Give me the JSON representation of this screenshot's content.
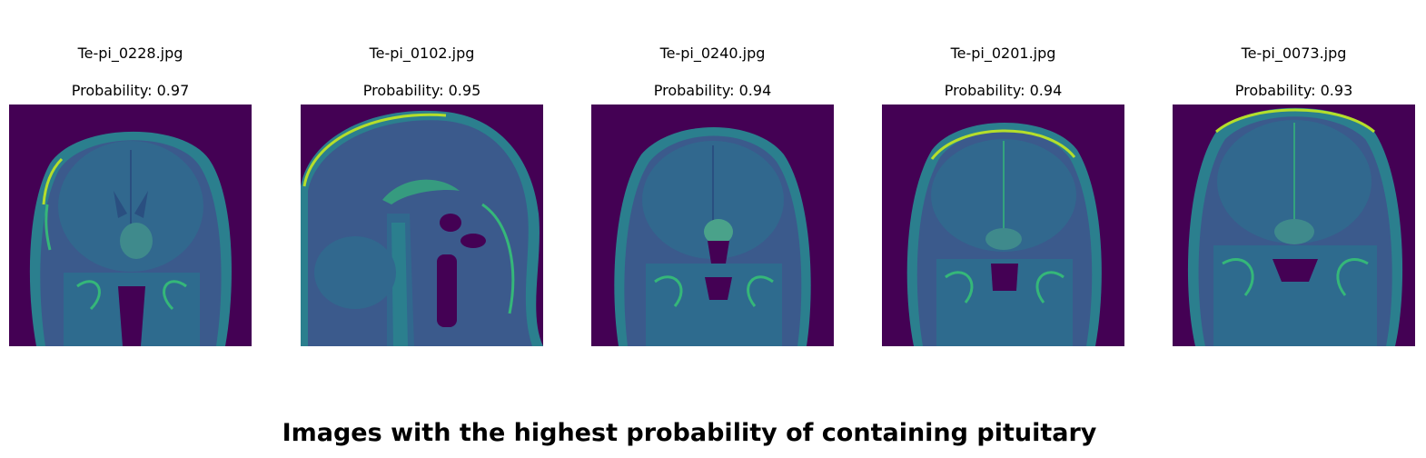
{
  "suptitle": "Images with the highest probability of containing pituitary",
  "colors": {
    "background": "#440154",
    "tissue_dark": "#3b5a8c",
    "tissue_mid": "#2b7f8e",
    "tissue_bright": "#35b779",
    "highlight": "#b5de2b"
  },
  "panels": [
    {
      "filename": "Te-pi_0228.jpg",
      "probability": "Probability: 0.97",
      "view": "coronal"
    },
    {
      "filename": "Te-pi_0102.jpg",
      "probability": "Probability: 0.95",
      "view": "sagittal"
    },
    {
      "filename": "Te-pi_0240.jpg",
      "probability": "Probability: 0.94",
      "view": "coronal"
    },
    {
      "filename": "Te-pi_0201.jpg",
      "probability": "Probability: 0.94",
      "view": "coronal"
    },
    {
      "filename": "Te-pi_0073.jpg",
      "probability": "Probability: 0.93",
      "view": "coronal"
    }
  ]
}
